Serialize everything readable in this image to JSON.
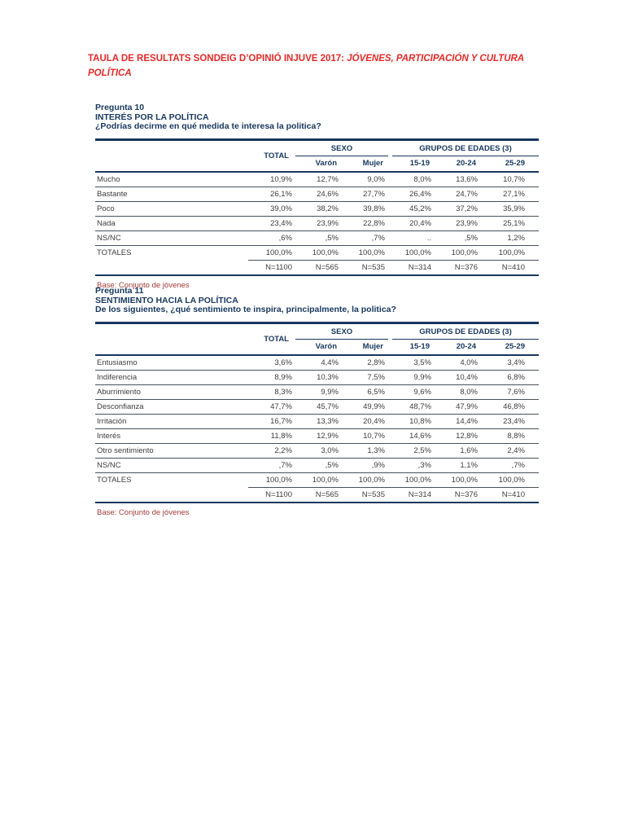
{
  "document": {
    "title": {
      "bold_part": "TAULA DE RESULTATS SONDEIG D’OPINIÓ INJUVE 2017: ",
      "italic_part": "JÓVENES, PARTICIPACIÓN Y CULTURA POLÍTICA"
    },
    "colors": {
      "title_red": "#e42a28",
      "base_note_red": "#a23c38",
      "header_navy": "#17375e",
      "body_text": "#3d3d3d"
    },
    "tables": [
      {
        "pregunta": "Pregunta 10",
        "title": "INTERÉS POR LA POLÍTICA",
        "question": "¿Podrías decirme en qué medida te interesa la politica?",
        "header": {
          "total": "TOTAL",
          "groups": [
            {
              "label": "SEXO",
              "columns": [
                "Varón",
                "Mujer"
              ]
            },
            {
              "label": "GRUPOS DE EDADES (3)",
              "columns": [
                "15-19",
                "20-24",
                "25-29"
              ]
            }
          ]
        },
        "rows": [
          {
            "label": "Mucho",
            "values": [
              "10,9%",
              "12,7%",
              "9,0%",
              "8,0%",
              "13,6%",
              "10,7%"
            ]
          },
          {
            "label": "Bastante",
            "values": [
              "26,1%",
              "24,6%",
              "27,7%",
              "26,4%",
              "24,7%",
              "27,1%"
            ]
          },
          {
            "label": "Poco",
            "values": [
              "39,0%",
              "38,2%",
              "39,8%",
              "45,2%",
              "37,2%",
              "35,9%"
            ]
          },
          {
            "label": "Nada",
            "values": [
              "23,4%",
              "23,9%",
              "22,8%",
              "20,4%",
              "23,9%",
              "25,1%"
            ]
          },
          {
            "label": "NS/NC",
            "values": [
              ",6%",
              ",5%",
              ",7%",
              "..",
              ",5%",
              "1,2%"
            ]
          }
        ],
        "totals": {
          "label": "TOTALES",
          "values": [
            "100,0%",
            "100,0%",
            "100,0%",
            "100,0%",
            "100,0%",
            "100,0%"
          ]
        },
        "n_values": [
          "N=1100",
          "N=565",
          "N=535",
          "N=314",
          "N=376",
          "N=410"
        ],
        "base_note": "Base: Conjunto de jóvenes"
      },
      {
        "pregunta": "Pregunta 11",
        "title": "SENTIMIENTO HACIA LA POLÍTICA",
        "question": "De los siguientes, ¿qué sentimiento te inspira, principalmente, la politica?",
        "header": {
          "total": "TOTAL",
          "groups": [
            {
              "label": "SEXO",
              "columns": [
                "Varón",
                "Mujer"
              ]
            },
            {
              "label": "GRUPOS DE EDADES (3)",
              "columns": [
                "15-19",
                "20-24",
                "25-29"
              ]
            }
          ]
        },
        "rows": [
          {
            "label": "Entusiasmo",
            "values": [
              "3,6%",
              "4,4%",
              "2,8%",
              "3,5%",
              "4,0%",
              "3,4%"
            ]
          },
          {
            "label": "Indiferencia",
            "values": [
              "8,9%",
              "10,3%",
              "7,5%",
              "9,9%",
              "10,4%",
              "6,8%"
            ]
          },
          {
            "label": "Aburrimiento",
            "values": [
              "8,3%",
              "9,9%",
              "6,5%",
              "9,6%",
              "8,0%",
              "7,6%"
            ]
          },
          {
            "label": "Desconfianza",
            "values": [
              "47,7%",
              "45,7%",
              "49,9%",
              "48,7%",
              "47,9%",
              "46,8%"
            ]
          },
          {
            "label": "Irritación",
            "values": [
              "16,7%",
              "13,3%",
              "20,4%",
              "10,8%",
              "14,4%",
              "23,4%"
            ]
          },
          {
            "label": "Interés",
            "values": [
              "11,8%",
              "12,9%",
              "10,7%",
              "14,6%",
              "12,8%",
              "8,8%"
            ]
          },
          {
            "label": "Otro sentimiento",
            "values": [
              "2,2%",
              "3,0%",
              "1,3%",
              "2,5%",
              "1,6%",
              "2,4%"
            ]
          },
          {
            "label": "NS/NC",
            "values": [
              ",7%",
              ",5%",
              ",9%",
              ",3%",
              "1,1%",
              ",7%"
            ]
          }
        ],
        "totals": {
          "label": "TOTALES",
          "values": [
            "100,0%",
            "100,0%",
            "100,0%",
            "100,0%",
            "100,0%",
            "100,0%"
          ]
        },
        "n_values": [
          "N=1100",
          "N=565",
          "N=535",
          "N=314",
          "N=376",
          "N=410"
        ],
        "base_note": "Base: Conjunto de jóvenes"
      }
    ]
  }
}
